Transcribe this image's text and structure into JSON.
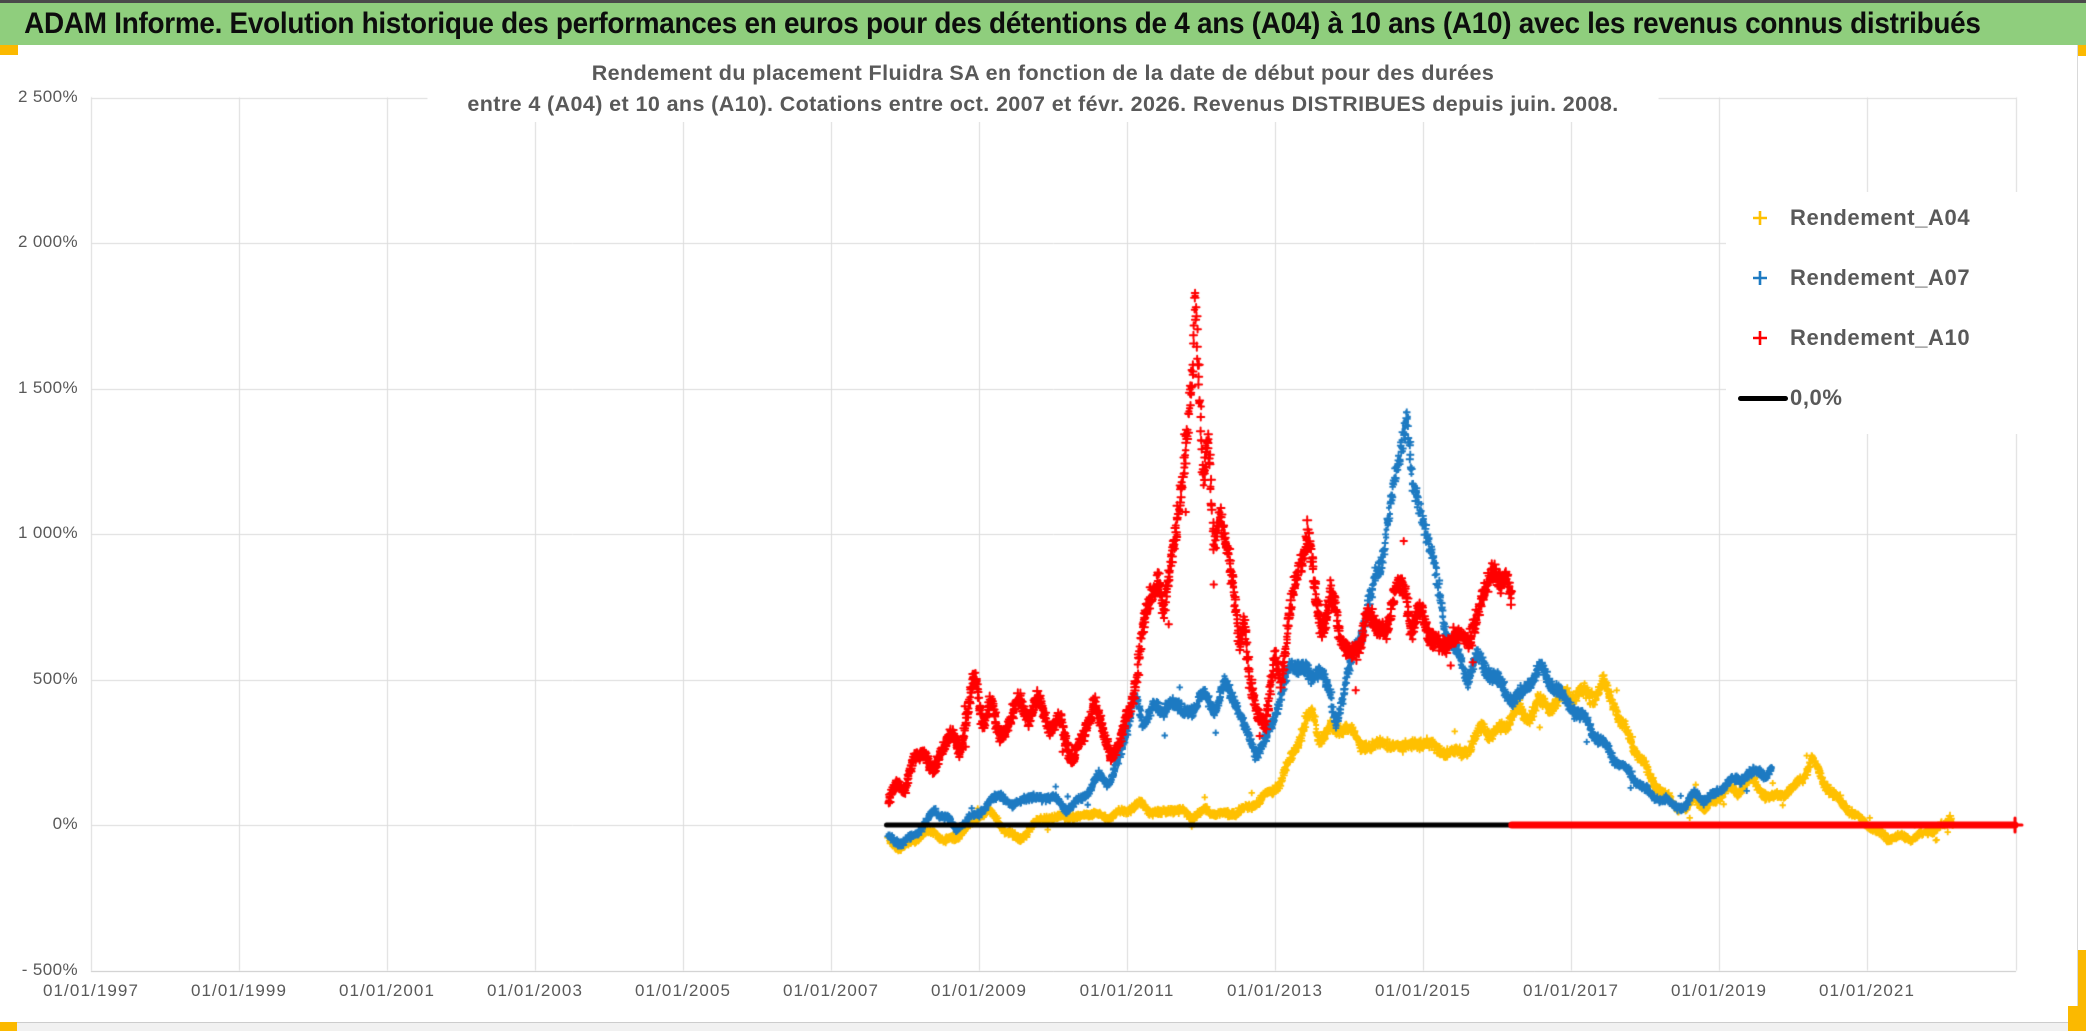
{
  "banner": {
    "title": "ADAM Informe. Evolution historique des performances en euros pour des détentions de 4 ans (A04) à 10 ans (A10) avec les revenus connus distribués"
  },
  "colors": {
    "banner_green": "#8FCE7D",
    "accent_orange": "#FBB900",
    "series_a04": "#FFC000",
    "series_a07": "#1D7AC2",
    "series_a10": "#FF0000",
    "zero_line_black": "#000000",
    "zero_line_red": "#FF0000",
    "gridline": "#DCDCDC",
    "text_gray": "#595959"
  },
  "chart_data": {
    "type": "scatter",
    "title_line1": "Rendement du placement Fluidra SA en fonction de la date de début pour des durées",
    "title_line2": "entre 4 (A04) et 10 ans (A10). Cotations entre oct. 2007 et févr. 2026. Revenus DISTRIBUES depuis juin. 2008.",
    "axes": {
      "x_tick_years": [
        1997,
        1999,
        2001,
        2003,
        2005,
        2007,
        2009,
        2011,
        2013,
        2015,
        2017,
        2019,
        2021
      ],
      "x_tick_labels": [
        "01/01/1997",
        "01/01/1999",
        "01/01/2001",
        "01/01/2003",
        "01/01/2005",
        "01/01/2007",
        "01/01/2009",
        "01/01/2011",
        "01/01/2013",
        "01/01/2015",
        "01/01/2017",
        "01/01/2019",
        "01/01/2021"
      ],
      "x_range_years": [
        1997,
        2023.1
      ],
      "y_tick_values": [
        2500,
        2000,
        1500,
        1000,
        500,
        0,
        -500
      ],
      "y_tick_labels": [
        "2 500%",
        "2 000%",
        "1 500%",
        "1 000%",
        "500%",
        "0%",
        "- 500%"
      ],
      "y_range_pct": [
        -500,
        2500
      ],
      "grid": true
    },
    "legend": [
      {
        "label": "Rendement_A04",
        "color": "#FFC000",
        "marker": "plus"
      },
      {
        "label": "Rendement_A07",
        "color": "#1D7AC2",
        "marker": "plus"
      },
      {
        "label": "Rendement_A10",
        "color": "#FF0000",
        "marker": "plus"
      },
      {
        "label": "0,0%",
        "color": "#000000",
        "marker": "line"
      }
    ],
    "series": [
      {
        "name": "Rendement_A04",
        "color": "#FFC000",
        "noise_base": 14,
        "noise_scale": 0.05,
        "line_width": 1.8,
        "points": [
          [
            2007.78,
            -45
          ],
          [
            2007.95,
            -80
          ],
          [
            2008.1,
            -60
          ],
          [
            2008.25,
            -35
          ],
          [
            2008.4,
            -25
          ],
          [
            2008.55,
            -50
          ],
          [
            2008.7,
            -35
          ],
          [
            2008.85,
            -10
          ],
          [
            2009.0,
            25
          ],
          [
            2009.12,
            45
          ],
          [
            2009.25,
            15
          ],
          [
            2009.4,
            -25
          ],
          [
            2009.55,
            -45
          ],
          [
            2009.7,
            -15
          ],
          [
            2009.85,
            25
          ],
          [
            2010.0,
            15
          ],
          [
            2010.15,
            40
          ],
          [
            2010.3,
            25
          ],
          [
            2010.45,
            45
          ],
          [
            2010.6,
            30
          ],
          [
            2010.75,
            20
          ],
          [
            2010.9,
            40
          ],
          [
            2011.05,
            60
          ],
          [
            2011.18,
            80
          ],
          [
            2011.3,
            55
          ],
          [
            2011.45,
            35
          ],
          [
            2011.6,
            50
          ],
          [
            2011.75,
            40
          ],
          [
            2011.9,
            30
          ],
          [
            2012.05,
            55
          ],
          [
            2012.2,
            45
          ],
          [
            2012.35,
            30
          ],
          [
            2012.5,
            40
          ],
          [
            2012.65,
            60
          ],
          [
            2012.8,
            95
          ],
          [
            2012.95,
            120
          ],
          [
            2013.1,
            160
          ],
          [
            2013.25,
            240
          ],
          [
            2013.4,
            330
          ],
          [
            2013.5,
            385
          ],
          [
            2013.6,
            300
          ],
          [
            2013.72,
            330
          ],
          [
            2013.85,
            350
          ],
          [
            2014.0,
            320
          ],
          [
            2014.15,
            275
          ],
          [
            2014.3,
            250
          ],
          [
            2014.45,
            300
          ],
          [
            2014.6,
            265
          ],
          [
            2014.75,
            290
          ],
          [
            2014.9,
            260
          ],
          [
            2015.05,
            285
          ],
          [
            2015.2,
            245
          ],
          [
            2015.35,
            265
          ],
          [
            2015.5,
            250
          ],
          [
            2015.65,
            280
          ],
          [
            2015.8,
            330
          ],
          [
            2015.95,
            300
          ],
          [
            2016.1,
            330
          ],
          [
            2016.25,
            415
          ],
          [
            2016.4,
            380
          ],
          [
            2016.55,
            425
          ],
          [
            2016.7,
            395
          ],
          [
            2016.85,
            425
          ],
          [
            2017.0,
            450
          ],
          [
            2017.15,
            465
          ],
          [
            2017.3,
            455
          ],
          [
            2017.42,
            480
          ],
          [
            2017.55,
            430
          ],
          [
            2017.68,
            340
          ],
          [
            2017.8,
            290
          ],
          [
            2017.95,
            235
          ],
          [
            2018.1,
            160
          ],
          [
            2018.25,
            110
          ],
          [
            2018.4,
            65
          ],
          [
            2018.55,
            45
          ],
          [
            2018.68,
            95
          ],
          [
            2018.8,
            60
          ],
          [
            2018.95,
            85
          ],
          [
            2019.1,
            130
          ],
          [
            2019.25,
            105
          ],
          [
            2019.4,
            150
          ],
          [
            2019.55,
            125
          ],
          [
            2019.7,
            95
          ],
          [
            2019.85,
            115
          ],
          [
            2020.0,
            120
          ],
          [
            2020.15,
            165
          ],
          [
            2020.25,
            215
          ],
          [
            2020.38,
            165
          ],
          [
            2020.5,
            120
          ],
          [
            2020.65,
            85
          ],
          [
            2020.8,
            45
          ],
          [
            2020.95,
            10
          ],
          [
            2021.1,
            -25
          ],
          [
            2021.3,
            -45
          ],
          [
            2021.5,
            -35
          ],
          [
            2021.65,
            -40
          ],
          [
            2021.8,
            -30
          ],
          [
            2021.95,
            -15
          ],
          [
            2022.05,
            -10
          ],
          [
            2022.12,
            25
          ],
          [
            2022.16,
            5
          ]
        ]
      },
      {
        "name": "Rendement_A07",
        "color": "#1D7AC2",
        "noise_base": 13,
        "noise_scale": 0.045,
        "line_width": 1.9,
        "points": [
          [
            2007.78,
            -40
          ],
          [
            2007.95,
            -70
          ],
          [
            2008.1,
            -45
          ],
          [
            2008.25,
            0
          ],
          [
            2008.4,
            55
          ],
          [
            2008.55,
            30
          ],
          [
            2008.7,
            -15
          ],
          [
            2008.85,
            15
          ],
          [
            2009.0,
            40
          ],
          [
            2009.15,
            80
          ],
          [
            2009.3,
            120
          ],
          [
            2009.45,
            60
          ],
          [
            2009.6,
            95
          ],
          [
            2009.75,
            80
          ],
          [
            2009.9,
            100
          ],
          [
            2010.05,
            90
          ],
          [
            2010.2,
            60
          ],
          [
            2010.35,
            85
          ],
          [
            2010.5,
            120
          ],
          [
            2010.62,
            160
          ],
          [
            2010.75,
            145
          ],
          [
            2010.88,
            220
          ],
          [
            2011.0,
            340
          ],
          [
            2011.1,
            460
          ],
          [
            2011.22,
            330
          ],
          [
            2011.35,
            420
          ],
          [
            2011.48,
            360
          ],
          [
            2011.6,
            440
          ],
          [
            2011.75,
            385
          ],
          [
            2011.9,
            420
          ],
          [
            2012.05,
            445
          ],
          [
            2012.2,
            390
          ],
          [
            2012.32,
            470
          ],
          [
            2012.45,
            430
          ],
          [
            2012.6,
            330
          ],
          [
            2012.75,
            255
          ],
          [
            2012.9,
            300
          ],
          [
            2013.05,
            420
          ],
          [
            2013.2,
            520
          ],
          [
            2013.35,
            560
          ],
          [
            2013.5,
            500
          ],
          [
            2013.6,
            575
          ],
          [
            2013.72,
            470
          ],
          [
            2013.82,
            340
          ],
          [
            2013.95,
            470
          ],
          [
            2014.1,
            600
          ],
          [
            2014.25,
            740
          ],
          [
            2014.4,
            900
          ],
          [
            2014.55,
            1080
          ],
          [
            2014.68,
            1260
          ],
          [
            2014.78,
            1430
          ],
          [
            2014.85,
            1150
          ],
          [
            2014.92,
            1080
          ],
          [
            2015.0,
            1060
          ],
          [
            2015.1,
            950
          ],
          [
            2015.22,
            800
          ],
          [
            2015.35,
            650
          ],
          [
            2015.5,
            570
          ],
          [
            2015.6,
            500
          ],
          [
            2015.72,
            560
          ],
          [
            2015.85,
            530
          ],
          [
            2016.0,
            500
          ],
          [
            2016.15,
            460
          ],
          [
            2016.3,
            440
          ],
          [
            2016.45,
            490
          ],
          [
            2016.6,
            520
          ],
          [
            2016.75,
            480
          ],
          [
            2016.9,
            440
          ],
          [
            2017.05,
            410
          ],
          [
            2017.2,
            360
          ],
          [
            2017.35,
            300
          ],
          [
            2017.5,
            250
          ],
          [
            2017.65,
            210
          ],
          [
            2017.8,
            180
          ],
          [
            2017.95,
            140
          ],
          [
            2018.1,
            100
          ],
          [
            2018.25,
            80
          ],
          [
            2018.4,
            65
          ],
          [
            2018.55,
            60
          ],
          [
            2018.68,
            125
          ],
          [
            2018.8,
            85
          ],
          [
            2018.95,
            110
          ],
          [
            2019.1,
            135
          ],
          [
            2019.25,
            150
          ],
          [
            2019.4,
            170
          ],
          [
            2019.55,
            195
          ],
          [
            2019.65,
            180
          ],
          [
            2019.72,
            195
          ]
        ]
      },
      {
        "name": "Rendement_A10",
        "color": "#FF0000",
        "noise_base": 16,
        "noise_scale": 0.05,
        "line_width": 2.0,
        "points": [
          [
            2007.78,
            80
          ],
          [
            2007.88,
            150
          ],
          [
            2008.0,
            120
          ],
          [
            2008.12,
            210
          ],
          [
            2008.25,
            260
          ],
          [
            2008.38,
            170
          ],
          [
            2008.5,
            280
          ],
          [
            2008.62,
            320
          ],
          [
            2008.75,
            250
          ],
          [
            2008.9,
            460
          ],
          [
            2008.96,
            480
          ],
          [
            2009.05,
            340
          ],
          [
            2009.15,
            430
          ],
          [
            2009.28,
            300
          ],
          [
            2009.42,
            380
          ],
          [
            2009.55,
            430
          ],
          [
            2009.68,
            370
          ],
          [
            2009.8,
            420
          ],
          [
            2009.95,
            330
          ],
          [
            2010.1,
            355
          ],
          [
            2010.25,
            235
          ],
          [
            2010.4,
            295
          ],
          [
            2010.55,
            430
          ],
          [
            2010.68,
            300
          ],
          [
            2010.78,
            240
          ],
          [
            2010.9,
            275
          ],
          [
            2011.0,
            380
          ],
          [
            2011.1,
            480
          ],
          [
            2011.2,
            650
          ],
          [
            2011.3,
            790
          ],
          [
            2011.42,
            845
          ],
          [
            2011.5,
            700
          ],
          [
            2011.58,
            860
          ],
          [
            2011.68,
            1060
          ],
          [
            2011.75,
            1160
          ],
          [
            2011.82,
            1330
          ],
          [
            2011.88,
            1560
          ],
          [
            2011.92,
            1880
          ],
          [
            2011.97,
            1600
          ],
          [
            2012.03,
            1200
          ],
          [
            2012.1,
            1310
          ],
          [
            2012.17,
            980
          ],
          [
            2012.25,
            1090
          ],
          [
            2012.35,
            900
          ],
          [
            2012.45,
            780
          ],
          [
            2012.52,
            620
          ],
          [
            2012.58,
            700
          ],
          [
            2012.66,
            470
          ],
          [
            2012.75,
            410
          ],
          [
            2012.88,
            355
          ],
          [
            2013.0,
            590
          ],
          [
            2013.08,
            510
          ],
          [
            2013.2,
            700
          ],
          [
            2013.32,
            860
          ],
          [
            2013.45,
            1000
          ],
          [
            2013.55,
            760
          ],
          [
            2013.65,
            700
          ],
          [
            2013.75,
            820
          ],
          [
            2013.88,
            660
          ],
          [
            2014.0,
            600
          ],
          [
            2014.12,
            560
          ],
          [
            2014.25,
            745
          ],
          [
            2014.38,
            650
          ],
          [
            2014.5,
            700
          ],
          [
            2014.62,
            800
          ],
          [
            2014.75,
            840
          ],
          [
            2014.85,
            660
          ],
          [
            2014.95,
            720
          ],
          [
            2015.1,
            640
          ],
          [
            2015.25,
            600
          ],
          [
            2015.4,
            680
          ],
          [
            2015.55,
            630
          ],
          [
            2015.7,
            690
          ],
          [
            2015.82,
            760
          ],
          [
            2015.95,
            900
          ],
          [
            2016.05,
            800
          ],
          [
            2016.12,
            840
          ],
          [
            2016.2,
            820
          ]
        ]
      }
    ],
    "zero_line": {
      "label": "0,0%",
      "value_pct": 0,
      "segments": [
        {
          "from_year": 2007.75,
          "to_year": 2016.2,
          "color": "#000000",
          "width": 5
        },
        {
          "from_year": 2016.2,
          "to_year": 2023.0,
          "color": "#FF0000",
          "width": 7
        }
      ]
    }
  }
}
